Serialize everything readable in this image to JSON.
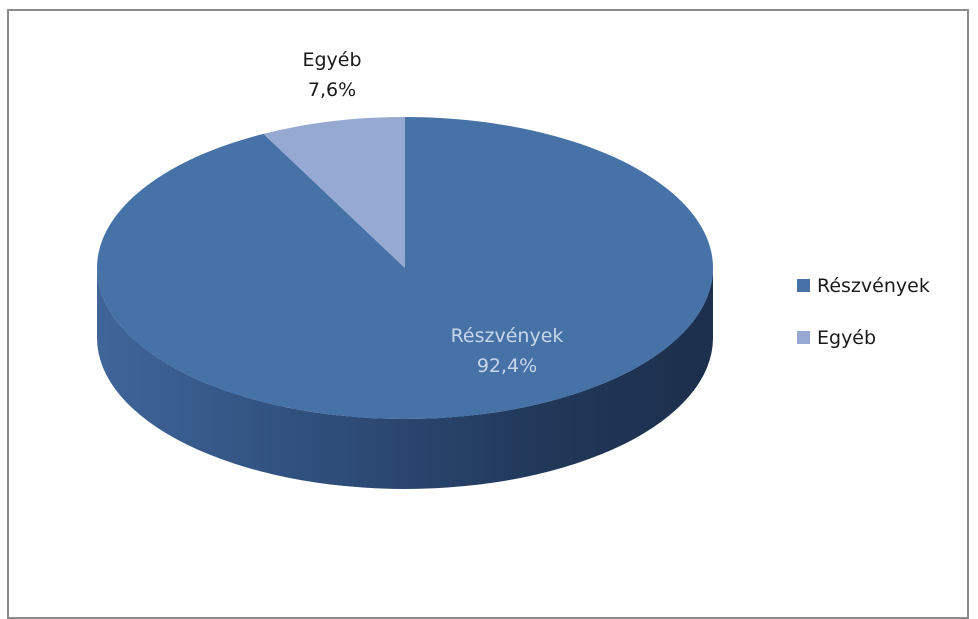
{
  "chart_data": {
    "type": "pie",
    "style": "3d",
    "slices": [
      {
        "label": "Részvények",
        "value": 92.4,
        "value_text": "92,4%",
        "color": "#4672a8",
        "label_color": "#c9d6e8"
      },
      {
        "label": "Egyéb",
        "value": 7.6,
        "value_text": "7,6%",
        "color": "#95a9d2",
        "label_color": "#1a1a1a"
      }
    ],
    "legend": {
      "position": "right",
      "entries": [
        "Részvények",
        "Egyéb"
      ]
    }
  }
}
